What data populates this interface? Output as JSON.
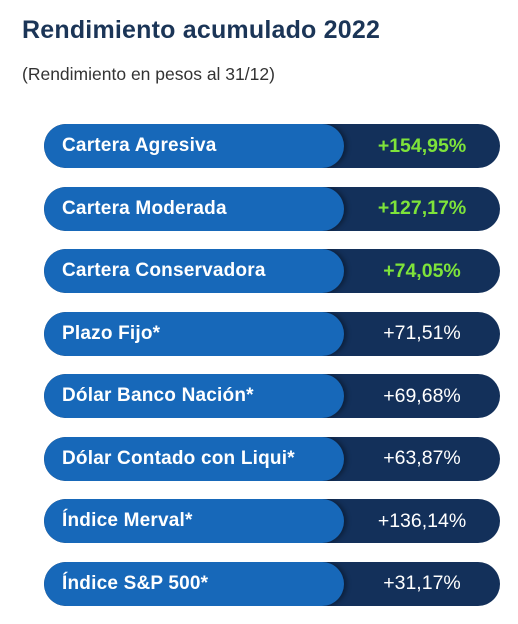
{
  "title": "Rendimiento acumulado 2022",
  "subtitle": "(Rendimiento en pesos al 31/12)",
  "colors": {
    "title": "#1b3557",
    "label_pill": "#1768b9",
    "value_bg": "#13305a",
    "highlight_value": "#7ee33a",
    "normal_value": "#ffffff"
  },
  "chart_data": {
    "type": "table",
    "title": "Rendimiento acumulado 2022",
    "subtitle": "(Rendimiento en pesos al 31/12)",
    "categories": [
      "Cartera Agresiva",
      "Cartera Moderada",
      "Cartera Conservadora",
      "Plazo Fijo*",
      "Dólar Banco Nación*",
      "Dólar Contado con Liqui*",
      "Índice Merval*",
      "Índice S&P 500*"
    ],
    "values": [
      154.95,
      127.17,
      74.05,
      71.51,
      69.68,
      63.87,
      136.14,
      31.17
    ],
    "value_labels": [
      "+154,95%",
      "+127,17%",
      "+74,05%",
      "+71,51%",
      "+69,68%",
      "+63,87%",
      "+136,14%",
      "+31,17%"
    ],
    "highlighted": [
      true,
      true,
      true,
      false,
      false,
      false,
      false,
      false
    ]
  }
}
